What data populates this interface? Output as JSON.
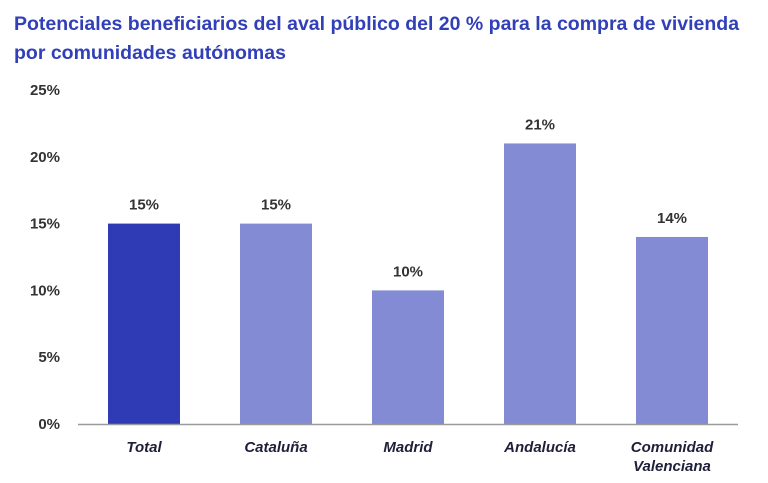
{
  "chart_data": {
    "type": "bar",
    "title": "Potenciales beneficiarios del aval público del 20 % para la compra de vivienda por comunidades autónomas",
    "categories": [
      [
        "Total"
      ],
      [
        "Cataluña"
      ],
      [
        "Madrid"
      ],
      [
        "Andalucía"
      ],
      [
        "Comunidad",
        "Valenciana"
      ]
    ],
    "values": [
      15,
      15,
      10,
      21,
      14
    ],
    "data_labels": [
      "15%",
      "15%",
      "10%",
      "21%",
      "14%"
    ],
    "y_ticks": [
      "0%",
      "5%",
      "10%",
      "15%",
      "20%",
      "25%"
    ],
    "ylim": [
      0,
      25
    ],
    "grid": false,
    "legend": "none",
    "colors": {
      "highlight": "#2f3bb5",
      "default": "#838bd4",
      "axis": "#9a9a9a"
    }
  }
}
